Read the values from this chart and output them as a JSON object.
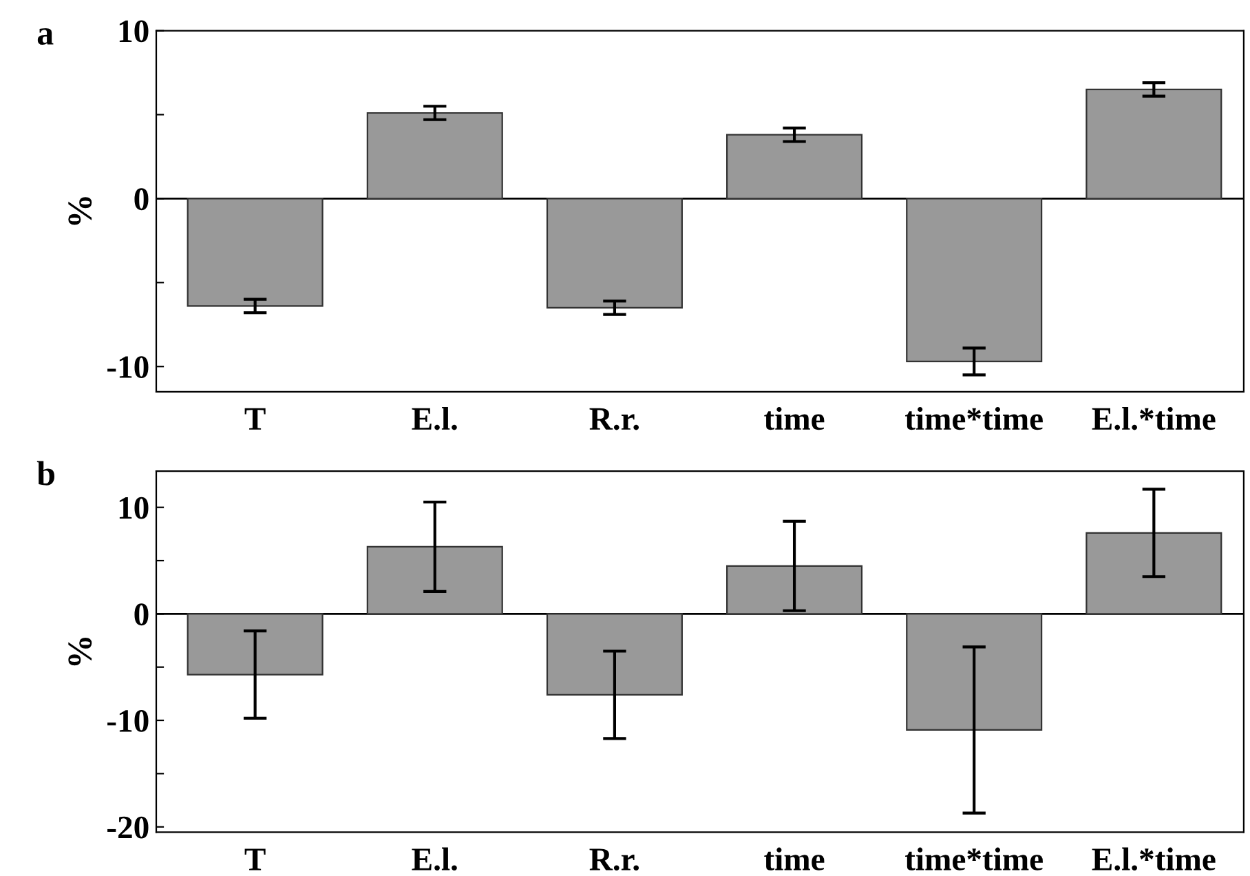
{
  "chart_data": [
    {
      "type": "bar",
      "title": "a",
      "ylabel": "%",
      "categories": [
        "T",
        "E.l.",
        "R.r.",
        "time",
        "time*time",
        "E.l.*time"
      ],
      "values": [
        -6.4,
        5.1,
        -6.5,
        3.8,
        -9.7,
        6.5
      ],
      "errors": [
        0.4,
        0.4,
        0.4,
        0.4,
        0.8,
        0.4
      ],
      "color": "#999999",
      "ylim": [
        -11.5,
        10
      ],
      "yticks": [
        {
          "value": -10,
          "label": "-10"
        },
        {
          "value": -5,
          "label": null
        },
        0,
        {
          "value": 5,
          "label": null
        },
        10
      ],
      "ref_lines": [
        {
          "axis": "y",
          "value": 0
        }
      ],
      "grid": false,
      "legend": false
    },
    {
      "type": "bar",
      "title": "b",
      "ylabel": "%",
      "categories": [
        "T",
        "E.l.",
        "R.r.",
        "time",
        "time*time",
        "E.l.*time"
      ],
      "values": [
        -5.7,
        6.3,
        -7.6,
        4.5,
        -10.9,
        7.6
      ],
      "errors": [
        4.1,
        4.2,
        4.1,
        4.2,
        7.8,
        4.1
      ],
      "color": "#999999",
      "ylim": [
        -20.5,
        13.4
      ],
      "yticks": [
        {
          "value": -20,
          "label": "-20"
        },
        {
          "value": -15,
          "label": null
        },
        {
          "value": -10,
          "label": "-10"
        },
        {
          "value": -5,
          "label": null
        },
        0,
        {
          "value": 5,
          "label": null
        },
        10
      ],
      "ref_lines": [
        {
          "axis": "y",
          "value": 0
        }
      ],
      "grid": false,
      "legend": false
    }
  ]
}
